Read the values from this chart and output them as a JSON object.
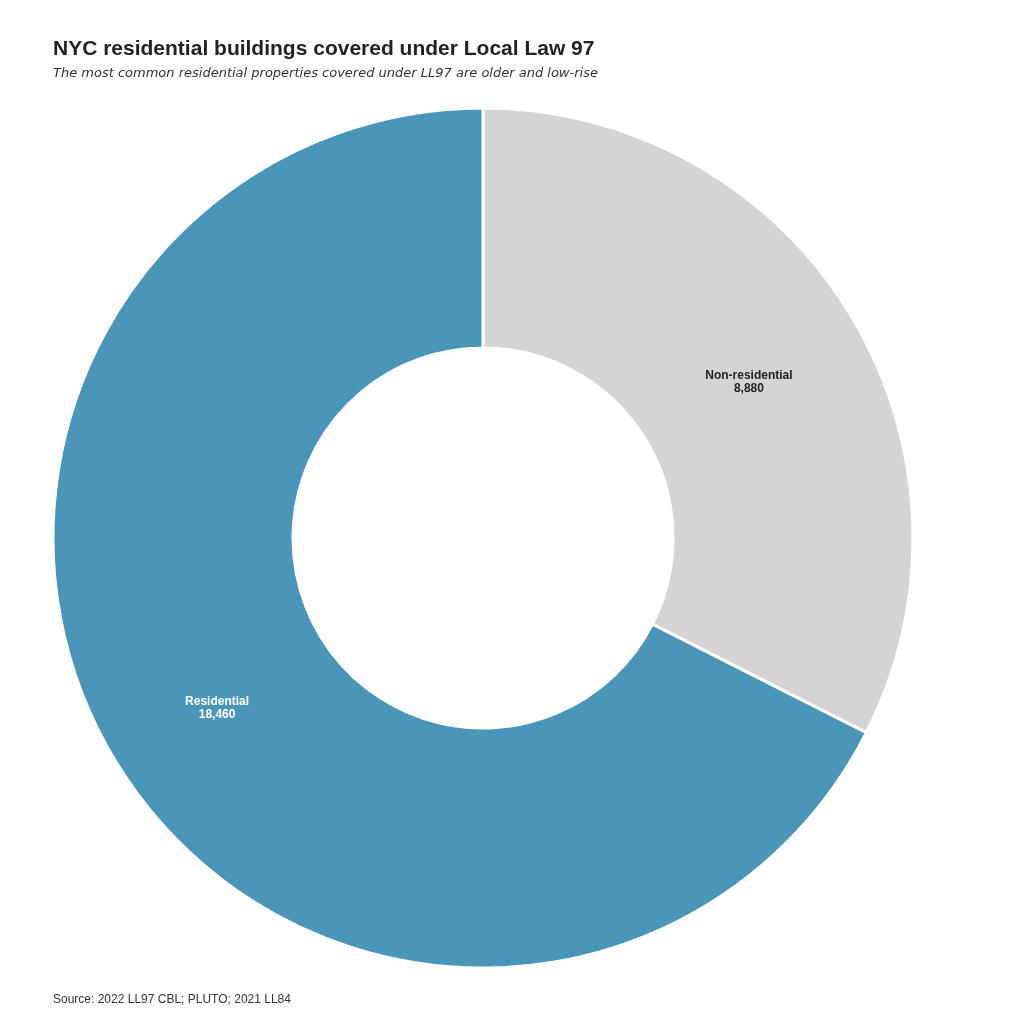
{
  "chart_data": {
    "type": "donut",
    "title": "NYC residential buildings covered under Local Law 97",
    "subtitle": "The most common residential properties covered under LL97 are older and low-rise",
    "categories": [
      "Non-residential",
      "Residential"
    ],
    "values": [
      8880,
      18460
    ],
    "value_labels": [
      "8,880",
      "18,460"
    ],
    "colors": [
      "#d4d4d4",
      "#4a96b8"
    ],
    "annotations": [
      "Source: 2022 LL97 CBL; PLUTO; 2021 LL84"
    ]
  }
}
